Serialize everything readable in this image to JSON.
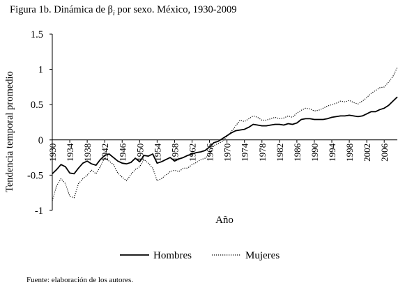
{
  "title": {
    "prefix": "Figura 1b. Dinámica de β",
    "subscript": "i",
    "suffix": " por sexo. México, 1930-2009"
  },
  "source_note": "Fuente: elaboración de los autores.",
  "chart_data": {
    "type": "line",
    "xlabel": "Año",
    "ylabel": "Tendencia temporal promedio",
    "ylim": [
      -1,
      1.5
    ],
    "xlim": [
      1930,
      2009
    ],
    "y_ticks": [
      {
        "value": 1.5,
        "label": "1.5"
      },
      {
        "value": 1,
        "label": "1"
      },
      {
        "value": 0.5,
        "label": "0.5"
      },
      {
        "value": 0,
        "label": "0"
      },
      {
        "value": -0.5,
        "label": "-0.5"
      },
      {
        "value": -1,
        "label": "-1"
      }
    ],
    "x_ticks": [
      "1930",
      "1934",
      "1938",
      "1942",
      "1946",
      "1950",
      "1954",
      "1958",
      "1962",
      "1966",
      "1970",
      "1974",
      "1978",
      "1982",
      "1986",
      "1990",
      "1994",
      "1998",
      "2002",
      "2006"
    ],
    "grid": false,
    "legend_position": "bottom",
    "x": [
      1930,
      1931,
      1932,
      1933,
      1934,
      1935,
      1936,
      1937,
      1938,
      1939,
      1940,
      1941,
      1942,
      1943,
      1944,
      1945,
      1946,
      1947,
      1948,
      1949,
      1950,
      1951,
      1952,
      1953,
      1954,
      1955,
      1956,
      1957,
      1958,
      1959,
      1960,
      1961,
      1962,
      1963,
      1964,
      1965,
      1966,
      1967,
      1968,
      1969,
      1970,
      1971,
      1972,
      1973,
      1974,
      1975,
      1976,
      1977,
      1978,
      1979,
      1980,
      1981,
      1982,
      1983,
      1984,
      1985,
      1986,
      1987,
      1988,
      1989,
      1990,
      1991,
      1992,
      1993,
      1994,
      1995,
      1996,
      1997,
      1998,
      1999,
      2000,
      2001,
      2002,
      2003,
      2004,
      2005,
      2006,
      2007,
      2008,
      2009
    ],
    "series": [
      {
        "name": "Hombres",
        "style": "solid",
        "color": "#000000",
        "values": [
          -0.48,
          -0.42,
          -0.35,
          -0.38,
          -0.47,
          -0.48,
          -0.4,
          -0.33,
          -0.3,
          -0.34,
          -0.36,
          -0.28,
          -0.22,
          -0.2,
          -0.25,
          -0.3,
          -0.33,
          -0.34,
          -0.32,
          -0.26,
          -0.31,
          -0.22,
          -0.23,
          -0.2,
          -0.33,
          -0.31,
          -0.28,
          -0.25,
          -0.3,
          -0.27,
          -0.25,
          -0.22,
          -0.2,
          -0.18,
          -0.17,
          -0.15,
          -0.1,
          -0.04,
          -0.02,
          0.02,
          0.06,
          0.1,
          0.13,
          0.14,
          0.15,
          0.18,
          0.22,
          0.21,
          0.2,
          0.2,
          0.21,
          0.22,
          0.22,
          0.21,
          0.23,
          0.22,
          0.24,
          0.29,
          0.3,
          0.3,
          0.29,
          0.29,
          0.29,
          0.3,
          0.32,
          0.33,
          0.34,
          0.34,
          0.35,
          0.34,
          0.33,
          0.34,
          0.37,
          0.4,
          0.4,
          0.43,
          0.45,
          0.49,
          0.55,
          0.61
        ]
      },
      {
        "name": "Mujeres",
        "style": "dotted",
        "color": "#000000",
        "values": [
          -0.86,
          -0.65,
          -0.55,
          -0.62,
          -0.8,
          -0.82,
          -0.62,
          -0.55,
          -0.5,
          -0.43,
          -0.48,
          -0.38,
          -0.25,
          -0.3,
          -0.35,
          -0.47,
          -0.53,
          -0.58,
          -0.49,
          -0.42,
          -0.38,
          -0.28,
          -0.33,
          -0.4,
          -0.58,
          -0.55,
          -0.5,
          -0.45,
          -0.43,
          -0.45,
          -0.4,
          -0.4,
          -0.35,
          -0.32,
          -0.28,
          -0.26,
          -0.2,
          -0.08,
          -0.05,
          -0.02,
          0.05,
          0.12,
          0.2,
          0.28,
          0.26,
          0.3,
          0.34,
          0.32,
          0.28,
          0.28,
          0.3,
          0.32,
          0.3,
          0.31,
          0.34,
          0.32,
          0.38,
          0.42,
          0.45,
          0.44,
          0.41,
          0.42,
          0.45,
          0.48,
          0.5,
          0.52,
          0.55,
          0.54,
          0.56,
          0.53,
          0.51,
          0.55,
          0.6,
          0.66,
          0.7,
          0.74,
          0.75,
          0.82,
          0.9,
          1.03
        ]
      }
    ]
  }
}
